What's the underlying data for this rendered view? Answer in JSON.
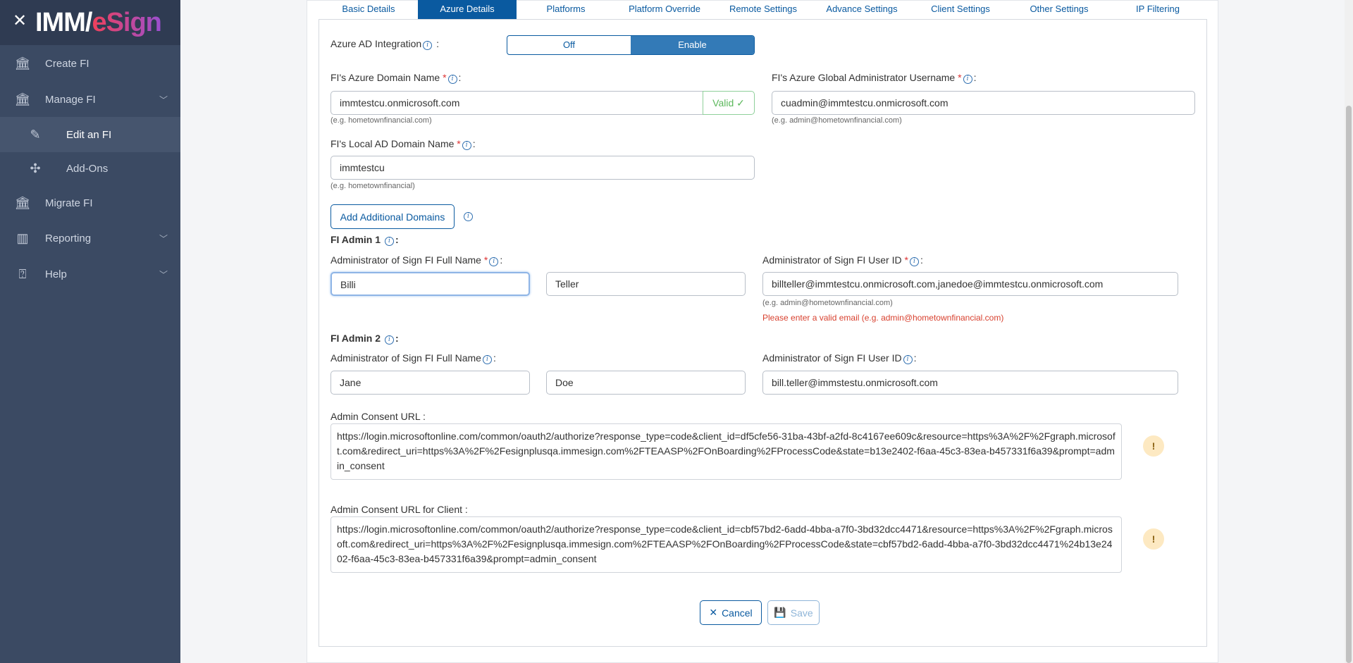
{
  "sidebar": {
    "logo": "IMM/eSign",
    "items": [
      {
        "label": "Create FI",
        "icon": "bank-plus-icon"
      },
      {
        "label": "Manage FI",
        "icon": "bank-gear-icon"
      },
      {
        "label": "Edit an FI",
        "icon": "pencil-icon"
      },
      {
        "label": "Add-Ons",
        "icon": "puzzle-icon"
      },
      {
        "label": "Migrate FI",
        "icon": "bank-arrow-icon"
      },
      {
        "label": "Reporting",
        "icon": "bar-chart-icon"
      },
      {
        "label": "Help",
        "icon": "help-bubble-icon"
      }
    ]
  },
  "tabs": [
    "Basic Details",
    "Azure Details",
    "Platforms",
    "Platform Override",
    "Remote Settings",
    "Advance Settings",
    "Client Settings",
    "Other Settings",
    "IP Filtering"
  ],
  "active_tab": "Azure Details",
  "form": {
    "azure_ad_label": "Azure AD Integration",
    "toggle": {
      "off": "Off",
      "on": "Enable",
      "selected": "Enable"
    },
    "domain_label": "FI's Azure Domain Name",
    "domain_value": "immtestcu.onmicrosoft.com",
    "domain_valid": "Valid ✓",
    "domain_hint": "(e.g. hometownfinancial.com)",
    "global_admin_label": "FI's Azure Global Administrator Username",
    "global_admin_value": "cuadmin@immtestcu.onmicrosoft.com",
    "global_admin_hint": "(e.g. admin@hometownfinancial.com)",
    "local_ad_label": "FI's Local AD Domain Name",
    "local_ad_value": "immtestcu",
    "local_ad_hint": "(e.g. hometownfinancial)",
    "add_domains": "Add Additional Domains",
    "admin1": {
      "title": "FI Admin 1",
      "name_label": "Administrator of Sign FI Full Name",
      "first": "Billi",
      "last": "Teller",
      "user_label": "Administrator of Sign FI User ID",
      "user_value": "billteller@immtestcu.onmicrosoft.com,janedoe@immtestcu.onmicrosoft.com",
      "hint": "(e.g. admin@hometownfinancial.com)",
      "error": "Please enter a valid email (e.g. admin@hometownfinancial.com)"
    },
    "admin2": {
      "title": "FI Admin 2",
      "name_label": "Administrator of Sign FI Full Name",
      "first": "Jane",
      "last": "Doe",
      "user_label": "Administrator of Sign FI User ID",
      "user_value": "bill.teller@immstestu.onmicrosoft.com"
    },
    "consent_label": "Admin Consent URL :",
    "consent_url": "https://login.microsoftonline.com/common/oauth2/authorize?response_type=code&client_id=df5cfe56-31ba-43bf-a2fd-8c4167ee609c&resource=https%3A%2F%2Fgraph.microsoft.com&redirect_uri=https%3A%2F%2Fesignplusqa.immesign.com%2FTEAASP%2FOnBoarding%2FProcessCode&state=b13e2402-f6aa-45c3-83ea-b457331f6a39&prompt=admin_consent",
    "client_consent_label": "Admin Consent URL for Client :",
    "client_consent_url": "https://login.microsoftonline.com/common/oauth2/authorize?response_type=code&client_id=cbf57bd2-6add-4bba-a7f0-3bd32dcc4471&resource=https%3A%2F%2Fgraph.microsoft.com&redirect_uri=https%3A%2F%2Fesignplusqa.immesign.com%2FTEAASP%2FOnBoarding%2FProcessCode&state=cbf57bd2-6add-4bba-a7f0-3bd32dcc4471%24b13e2402-f6aa-45c3-83ea-b457331f6a39&prompt=admin_consent",
    "warn": "!",
    "cancel": "Cancel",
    "save": "Save"
  },
  "colors": {
    "primary": "#0a5aa0",
    "sidebar": "#3b4a63",
    "error": "#d8412f",
    "valid": "#5cb85c"
  }
}
